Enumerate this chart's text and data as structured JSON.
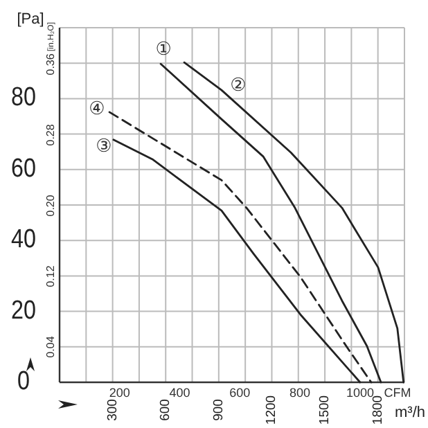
{
  "chart_data": {
    "type": "line",
    "xlabel": "m³/h",
    "x2label": "CFM",
    "ylabel": "[Pa]",
    "y2label": "[in.H₂O]",
    "xlim": [
      0,
      1950
    ],
    "xticks": [
      {
        "value": 150,
        "label": null
      },
      300,
      {
        "value": 450,
        "label": null
      },
      600,
      {
        "value": 750,
        "label": null
      },
      900,
      {
        "value": 1050,
        "label": null
      },
      1200,
      {
        "value": 1350,
        "label": null
      },
      1500,
      {
        "value": 1650,
        "label": null
      },
      1800
    ],
    "x2lim": [
      0,
      1147.7
    ],
    "x2ticks": [
      200,
      400,
      600,
      800,
      1000
    ],
    "ylim": [
      0,
      100
    ],
    "yticks": [
      0,
      {
        "value": 10,
        "label": null
      },
      20,
      {
        "value": 30,
        "label": null
      },
      40,
      {
        "value": 50,
        "label": null
      },
      60,
      {
        "value": 70,
        "label": null
      },
      80,
      {
        "value": 90,
        "label": null
      }
    ],
    "y2lim": [
      0,
      0.4015
    ],
    "y2ticks": [
      0.04,
      0.12,
      {
        "value": 0.2,
        "label": "0.20"
      },
      0.28,
      0.36
    ],
    "grid": true,
    "marker": "none",
    "series": [
      {
        "name": "①",
        "color": "#222222",
        "line_style": "solid",
        "x": [
          572,
          916,
          1151,
          1331,
          1597,
          1738,
          1817
        ],
        "values": [
          89.8,
          74.2,
          63.7,
          49.2,
          23.0,
          10.2,
          0
        ]
      },
      {
        "name": "②",
        "color": "#222222",
        "line_style": "solid",
        "x": [
          705,
          916,
          1308,
          1597,
          1801,
          1910,
          1945
        ],
        "values": [
          90.2,
          82.4,
          64.8,
          49.2,
          32.4,
          15.2,
          0
        ]
      },
      {
        "name": "③",
        "color": "#222222",
        "line_style": "solid",
        "x": [
          305,
          525,
          916,
          1096,
          1362,
          1699
        ],
        "values": [
          68.4,
          62.9,
          48.4,
          36.3,
          19.1,
          0
        ]
      },
      {
        "name": "④",
        "color": "#222222",
        "line_style": "dashed",
        "x": [
          282,
          916,
          1057,
          1362,
          1621,
          1762
        ],
        "values": [
          76.2,
          57.0,
          49.2,
          29.7,
          10.2,
          0
        ]
      }
    ]
  }
}
